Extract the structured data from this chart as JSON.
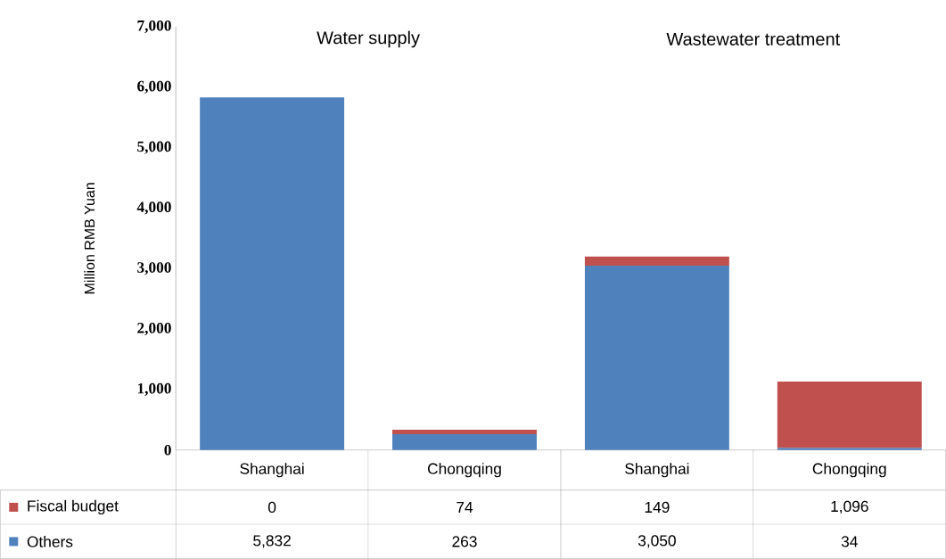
{
  "chart_data": {
    "type": "bar",
    "stacked": true,
    "ylabel": "Million RMB Yuan",
    "categories": [
      "Shanghai",
      "Chongqing",
      "Shanghai",
      "Chongqing"
    ],
    "series": [
      {
        "name": "Others",
        "color": "#4f81bd",
        "values": [
          5832,
          263,
          3050,
          34
        ],
        "value_labels": [
          "5,832",
          "263",
          "3,050",
          "34"
        ]
      },
      {
        "name": "Fiscal budget",
        "color": "#c0504d",
        "values": [
          0,
          74,
          149,
          1096
        ],
        "value_labels": [
          "0",
          "74",
          "149",
          "1,096"
        ]
      }
    ],
    "ylim": [
      0,
      7000
    ],
    "yticks": [
      0,
      {
        "value": 1000,
        "label": "1,000"
      },
      {
        "value": 2000,
        "label": "2,000"
      },
      {
        "value": 3000,
        "label": "3,000"
      },
      {
        "value": 4000,
        "label": "4,000"
      },
      {
        "value": 5000,
        "label": "5,000"
      },
      {
        "value": 6000,
        "label": "6,000"
      },
      {
        "value": 7000,
        "label": "7,000"
      }
    ],
    "annotations": [
      "Water supply",
      "Wastewater treatment"
    ],
    "legend": "bottom",
    "grid": false
  }
}
